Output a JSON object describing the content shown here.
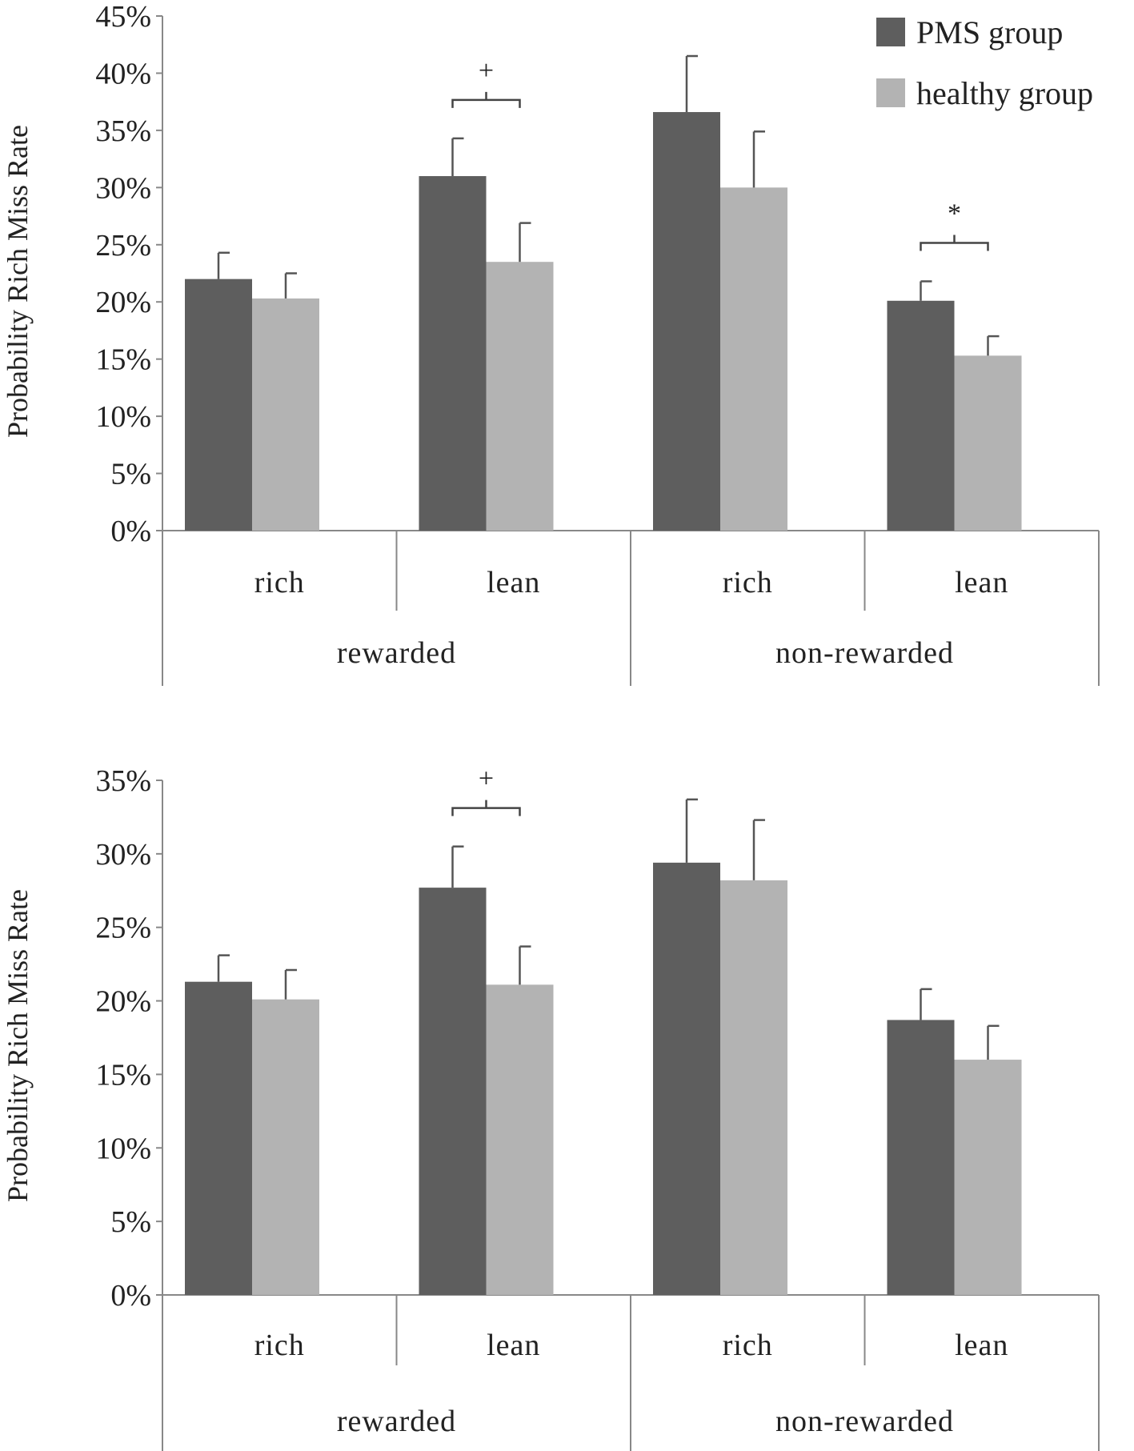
{
  "chart_data": [
    {
      "type": "bar",
      "ylabel": "Probability Rich Miss Rate",
      "ylim": [
        0,
        45
      ],
      "yticks": [
        0,
        5,
        10,
        15,
        20,
        25,
        30,
        35,
        40,
        45
      ],
      "ytick_labels": [
        "0%",
        "5%",
        "10%",
        "15%",
        "20%",
        "25%",
        "30%",
        "35%",
        "40%",
        "45%"
      ],
      "categories": [
        "rich",
        "lean",
        "rich",
        "lean"
      ],
      "groups": [
        {
          "label": "rewarded",
          "span": [
            0,
            1
          ]
        },
        {
          "label": "non-rewarded",
          "span": [
            2,
            3
          ]
        }
      ],
      "series": [
        {
          "name": "PMS group",
          "color": "#5e5e5e",
          "values": [
            22.0,
            31.0,
            36.6,
            20.1
          ],
          "errors": [
            2.3,
            3.3,
            4.9,
            1.7
          ]
        },
        {
          "name": "healthy group",
          "color": "#b3b3b3",
          "values": [
            20.3,
            23.5,
            30.0,
            15.3
          ],
          "errors": [
            2.2,
            3.4,
            4.9,
            1.7
          ]
        }
      ],
      "legend": {
        "position": "top-right",
        "entries": [
          "PMS group",
          "healthy group"
        ]
      },
      "annotations": [
        {
          "label": "+",
          "category_index": 1
        },
        {
          "label": "*",
          "category_index": 3
        }
      ]
    },
    {
      "type": "bar",
      "ylabel": "Probability Rich Miss Rate",
      "ylim": [
        0,
        35
      ],
      "yticks": [
        0,
        5,
        10,
        15,
        20,
        25,
        30,
        35
      ],
      "ytick_labels": [
        "0%",
        "5%",
        "10%",
        "15%",
        "20%",
        "25%",
        "30%",
        "35%"
      ],
      "categories": [
        "rich",
        "lean",
        "rich",
        "lean"
      ],
      "groups": [
        {
          "label": "rewarded",
          "span": [
            0,
            1
          ]
        },
        {
          "label": "non-rewarded",
          "span": [
            2,
            3
          ]
        }
      ],
      "series": [
        {
          "name": "PMS group",
          "color": "#5e5e5e",
          "values": [
            21.3,
            27.7,
            29.4,
            18.7
          ],
          "errors": [
            1.8,
            2.8,
            4.3,
            2.1
          ]
        },
        {
          "name": "healthy group",
          "color": "#b3b3b3",
          "values": [
            20.1,
            21.1,
            28.2,
            16.0
          ],
          "errors": [
            2.0,
            2.6,
            4.1,
            2.3
          ]
        }
      ],
      "annotations": [
        {
          "label": "+",
          "category_index": 1
        }
      ]
    }
  ]
}
